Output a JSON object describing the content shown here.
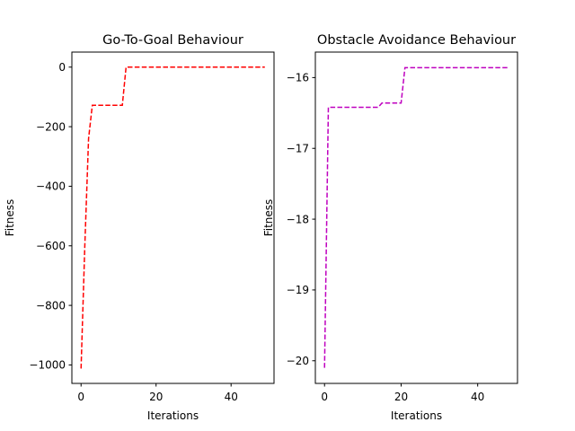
{
  "chart_data": [
    {
      "type": "line",
      "title": "Go-To-Goal Behaviour",
      "xlabel": "Iterations",
      "ylabel": "Fitness",
      "xlim": [
        -2.45,
        51.45
      ],
      "ylim": [
        -1062,
        50.5
      ],
      "xticks": [
        0,
        20,
        40
      ],
      "yticks": [
        -1000,
        -800,
        -600,
        -400,
        -200,
        0
      ],
      "grid": false,
      "series": [
        {
          "color": "#ff0000",
          "style": "dashed",
          "x": [
            0,
            1,
            2,
            3,
            4,
            5,
            6,
            7,
            8,
            9,
            10,
            11,
            12,
            13,
            14,
            15,
            16,
            17,
            18,
            19,
            20,
            21,
            22,
            23,
            24,
            25,
            26,
            27,
            28,
            29,
            30,
            31,
            32,
            33,
            34,
            35,
            36,
            37,
            38,
            39,
            40,
            41,
            42,
            43,
            44,
            45,
            46,
            47,
            48,
            49
          ],
          "y": [
            -1012,
            -600,
            -240,
            -128,
            -128,
            -128,
            -128,
            -128,
            -128,
            -128,
            -128,
            -128,
            0,
            0,
            0,
            0,
            0,
            0,
            0,
            0,
            0,
            0,
            0,
            0,
            0,
            0,
            0,
            0,
            0,
            0,
            0,
            0,
            0,
            0,
            0,
            0,
            0,
            0,
            0,
            0,
            0,
            0,
            0,
            0,
            0,
            0,
            0,
            0,
            0,
            0
          ]
        }
      ]
    },
    {
      "type": "line",
      "title": "Obstacle Avoidance Behaviour",
      "xlabel": "Iterations",
      "ylabel": "Fitness",
      "xlim": [
        -2.4,
        50.4
      ],
      "ylim": [
        -20.32,
        -15.64
      ],
      "xticks": [
        0,
        20,
        40
      ],
      "yticks": [
        -20,
        -19,
        -18,
        -17,
        -16
      ],
      "grid": false,
      "series": [
        {
          "color": "#bf00bf",
          "style": "dashed",
          "x": [
            0,
            1,
            2,
            3,
            4,
            5,
            6,
            7,
            8,
            9,
            10,
            11,
            12,
            13,
            14,
            15,
            16,
            17,
            18,
            19,
            20,
            21,
            22,
            23,
            24,
            25,
            26,
            27,
            28,
            29,
            30,
            31,
            32,
            33,
            34,
            35,
            36,
            37,
            38,
            39,
            40,
            41,
            42,
            43,
            44,
            45,
            46,
            47,
            48
          ],
          "y": [
            -20.1,
            -16.42,
            -16.42,
            -16.42,
            -16.42,
            -16.42,
            -16.42,
            -16.42,
            -16.42,
            -16.42,
            -16.42,
            -16.42,
            -16.42,
            -16.42,
            -16.42,
            -16.36,
            -16.36,
            -16.36,
            -16.36,
            -16.36,
            -16.36,
            -15.86,
            -15.86,
            -15.86,
            -15.86,
            -15.86,
            -15.86,
            -15.86,
            -15.86,
            -15.86,
            -15.86,
            -15.86,
            -15.86,
            -15.86,
            -15.86,
            -15.86,
            -15.86,
            -15.86,
            -15.86,
            -15.86,
            -15.86,
            -15.86,
            -15.86,
            -15.86,
            -15.86,
            -15.86,
            -15.86,
            -15.86,
            -15.86
          ]
        }
      ]
    }
  ]
}
